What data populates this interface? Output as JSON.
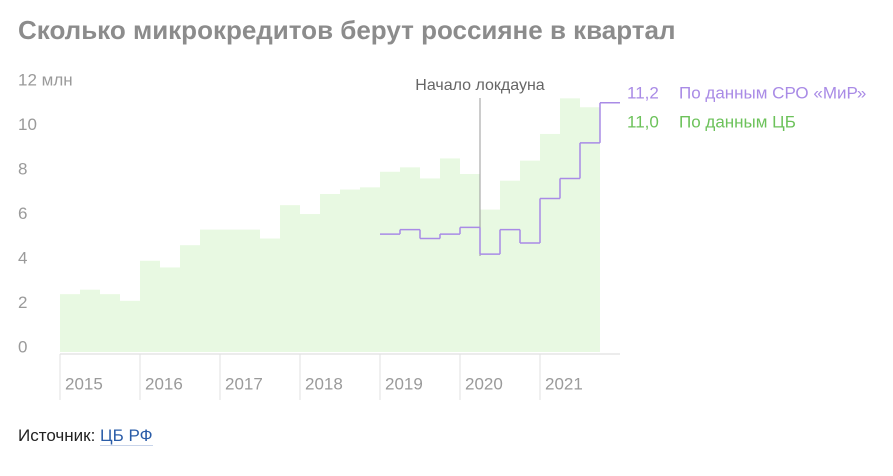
{
  "chart_data": {
    "type": "step",
    "title": "Сколько микрокредитов берут россияне в квартал",
    "categories": [
      "2015",
      null,
      null,
      null,
      "2016",
      null,
      null,
      null,
      "2017",
      null,
      null,
      null,
      "2018",
      null,
      null,
      null,
      "2019",
      null,
      null,
      null,
      "2020",
      null,
      null,
      null,
      "2021",
      null,
      null,
      null
    ],
    "series": [
      {
        "name": "По данным СРО «МиР»",
        "color": "#a98be6",
        "values": [
          null,
          null,
          null,
          null,
          null,
          null,
          null,
          null,
          null,
          null,
          null,
          null,
          null,
          null,
          null,
          null,
          5.3,
          5.5,
          5.1,
          5.3,
          5.6,
          4.4,
          5.5,
          4.9,
          6.9,
          7.8,
          9.4,
          11.2
        ],
        "end_label": "11,2"
      },
      {
        "name": "По данным ЦБ",
        "color": "#6cc25a",
        "fill": "#e8f9e2",
        "values": [
          2.6,
          2.8,
          2.6,
          2.3,
          4.1,
          3.8,
          4.8,
          5.5,
          5.5,
          5.5,
          5.1,
          6.6,
          6.2,
          7.1,
          7.3,
          7.4,
          8.1,
          8.3,
          7.8,
          8.7,
          8.0,
          6.4,
          7.7,
          8.6,
          9.8,
          11.4,
          11.0,
          null
        ],
        "end_label": "11,0"
      }
    ],
    "annotation": "Начало локдауна",
    "ylim": [
      0,
      12
    ],
    "yticks": [
      0,
      2,
      4,
      6,
      8,
      10,
      {
        "value": 12,
        "label": "12 млн"
      }
    ],
    "source_label": "Источник:",
    "source": "ЦБ РФ"
  }
}
